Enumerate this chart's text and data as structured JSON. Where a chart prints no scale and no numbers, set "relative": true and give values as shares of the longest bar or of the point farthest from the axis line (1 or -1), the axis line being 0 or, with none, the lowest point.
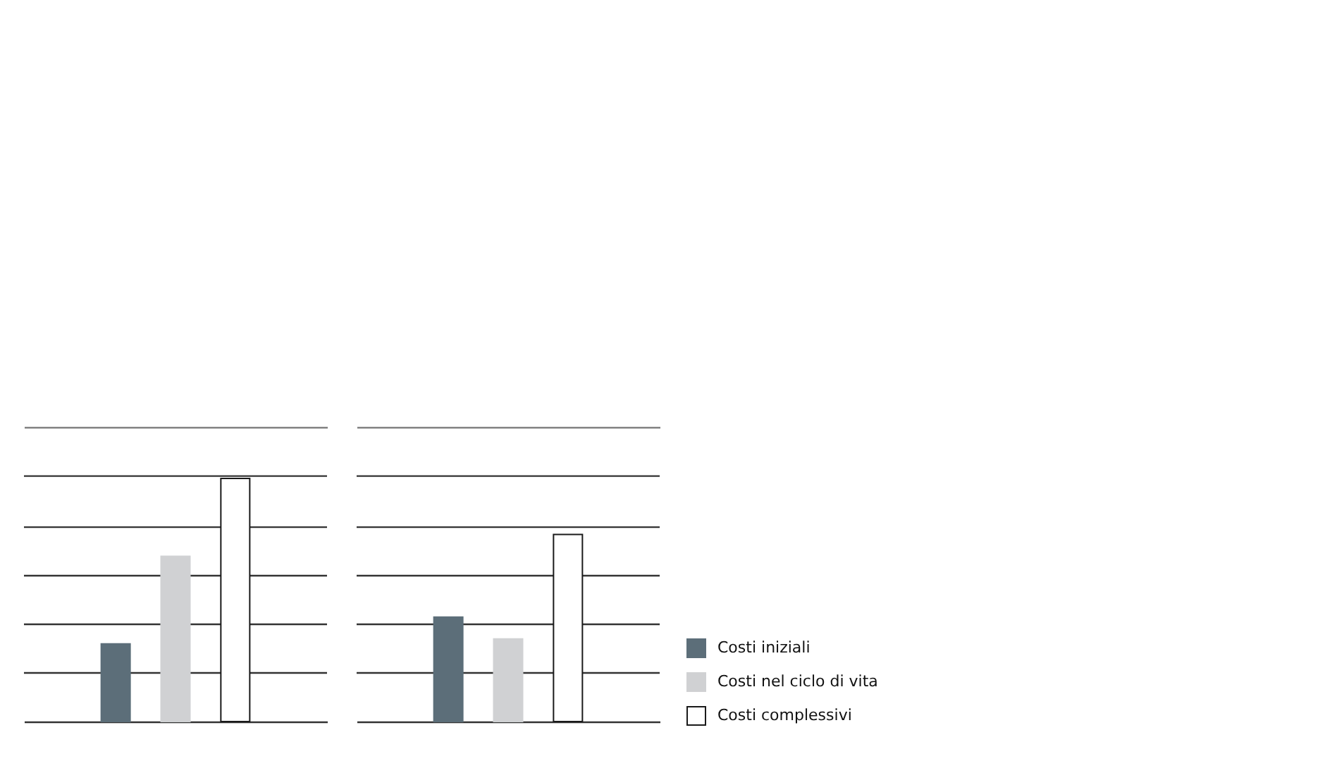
{
  "chart_data": {
    "type": "bar",
    "categories": [
      null,
      null
    ],
    "series": [
      {
        "name": "Costi iniziali",
        "color": "#5c6e79",
        "values": [
          0.32,
          0.43
        ]
      },
      {
        "name": "Costi nel ciclo di vita",
        "color": "#d0d1d3",
        "values": [
          0.68,
          0.34
        ]
      },
      {
        "name": "Costi complessivi",
        "color": "#ffffff",
        "values": [
          1,
          0.77
        ]
      }
    ],
    "relative": true,
    "ref_lines": [
      {
        "axis": "y",
        "value": 0.2,
        "color": "#333333"
      },
      {
        "axis": "y",
        "value": 0.4,
        "color": "#333333"
      },
      {
        "axis": "y",
        "value": 0.6,
        "color": "#333333"
      },
      {
        "axis": "y",
        "value": 0.8,
        "color": "#333333"
      },
      {
        "axis": "y",
        "value": 1.01,
        "color": "#333333"
      }
    ],
    "legend": "bottom right"
  }
}
